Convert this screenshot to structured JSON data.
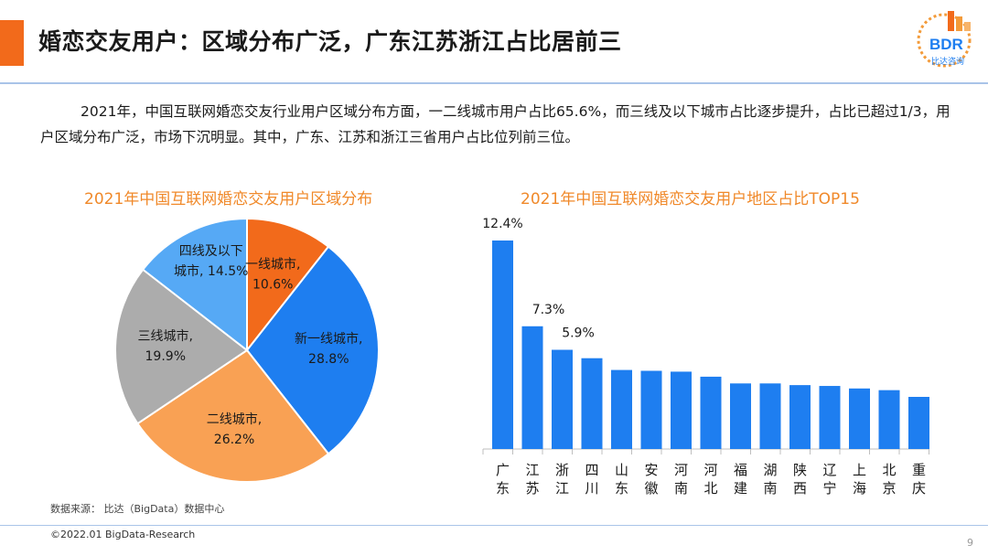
{
  "header": {
    "title": "婚恋交友用户：区域分布广泛，广东江苏浙江占比居前三",
    "logo_text": "BDR",
    "logo_subtext": "比达咨询"
  },
  "paragraph": "2021年，中国互联网婚恋交友行业用户区域分布方面，一二线城市用户占比65.6%，而三线及以下城市占比逐步提升，占比已超过1/3，用户区域分布广泛，市场下沉明显。其中，广东、江苏和浙江三省用户占比位列前三位。",
  "pie_title": "2021年中国互联网婚恋交友用户区域分布",
  "bar_title": "2021年中国互联网婚恋交友用户地区占比TOP15",
  "source": "数据来源： 比达（BigData）数据中心",
  "footer": "©2022.01 BigData-Research",
  "page_number": "9",
  "colors": {
    "accent": "#f26a1b",
    "bar": "#1e7ef0",
    "chart_title": "#f0892a",
    "rule": "#a9c4e8"
  },
  "chart_data": [
    {
      "type": "pie",
      "title": "2021年中国互联网婚恋交友用户区域分布",
      "slices": [
        {
          "label": "一线城市,",
          "value": 10.6,
          "value_label": "10.6%",
          "color": "#f26a1b"
        },
        {
          "label": "新一线城市,",
          "value": 28.8,
          "value_label": "28.8%",
          "color": "#1e7ef0"
        },
        {
          "label": "二线城市,",
          "value": 26.2,
          "value_label": "26.2%",
          "color": "#f9a154"
        },
        {
          "label": "三线城市,",
          "value": 19.9,
          "value_label": "19.9%",
          "color": "#acacac"
        },
        {
          "label": "四线及以下城市,",
          "label_line1": "四线及以下",
          "label_line2": "城市,",
          "value": 14.5,
          "value_label": "14.5%",
          "color": "#56a9f5"
        }
      ]
    },
    {
      "type": "bar",
      "title": "2021年中国互联网婚恋交友用户地区占比TOP15",
      "categories": [
        "广东",
        "江苏",
        "浙江",
        "四川",
        "山东",
        "安徽",
        "河南",
        "河北",
        "福建",
        "湖南",
        "陕西",
        "辽宁",
        "上海",
        "北京",
        "重庆"
      ],
      "values": [
        12.4,
        7.3,
        5.9,
        5.4,
        4.7,
        4.65,
        4.6,
        4.3,
        3.9,
        3.9,
        3.8,
        3.75,
        3.6,
        3.5,
        3.1
      ],
      "data_labels": [
        "12.4%",
        "7.3%",
        "5.9%",
        "",
        "",
        "",
        "",
        "",
        "",
        "",
        "",
        "",
        "",
        "",
        ""
      ],
      "ylim": [
        0,
        12.4
      ]
    }
  ]
}
